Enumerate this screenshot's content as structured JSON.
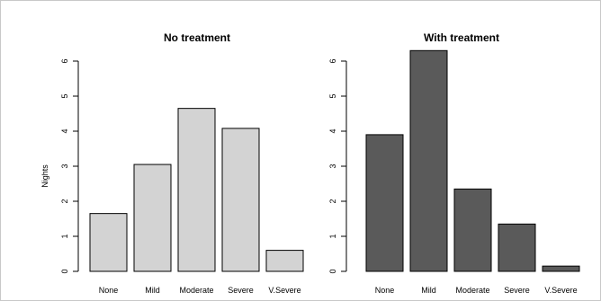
{
  "chart_data": [
    {
      "type": "bar",
      "title": "No treatment",
      "ylabel": "Nights",
      "xlabel": "",
      "categories": [
        "None",
        "Mild",
        "Moderate",
        "Severe",
        "V.Severe"
      ],
      "values": [
        1.65,
        3.05,
        4.65,
        4.08,
        0.6
      ],
      "yticks": [
        0,
        1,
        2,
        3,
        4,
        5,
        6
      ],
      "ylim": [
        0,
        6.3
      ],
      "bar_color": "#d3d3d3",
      "grid": false
    },
    {
      "type": "bar",
      "title": "With treatment",
      "ylabel": "",
      "xlabel": "",
      "categories": [
        "None",
        "Mild",
        "Moderate",
        "Severe",
        "V.Severe"
      ],
      "values": [
        3.9,
        6.3,
        2.35,
        1.35,
        0.15
      ],
      "yticks": [
        0,
        1,
        2,
        3,
        4,
        5,
        6
      ],
      "ylim": [
        0,
        6.3
      ],
      "bar_color": "#5a5a5a",
      "grid": false
    }
  ]
}
